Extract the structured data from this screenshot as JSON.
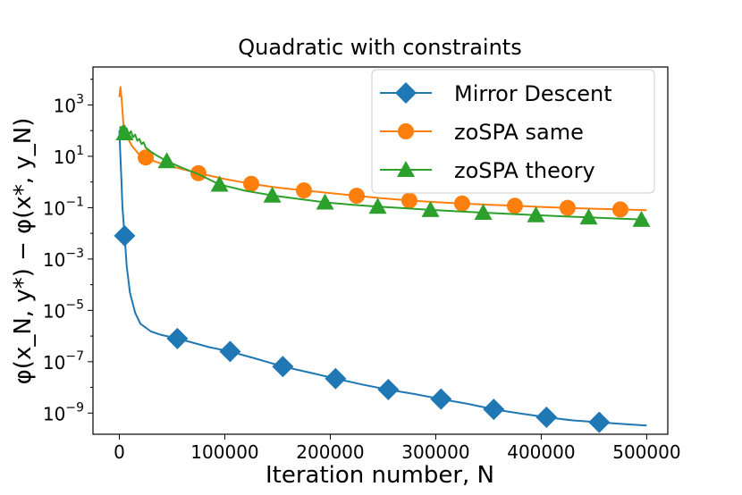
{
  "chart_data": {
    "type": "line",
    "title": "Quadratic with constraints",
    "xlabel": "Iteration number, N",
    "ylabel": "φ(x_N, y*) − φ(x*, y_N)",
    "xlim": [
      -25000,
      520000
    ],
    "ylim": [
      1.5e-10,
      30000
    ],
    "yscale": "log",
    "x_ticks": [
      0,
      100000,
      200000,
      300000,
      400000,
      500000
    ],
    "x_tick_labels": [
      "0",
      "100000",
      "200000",
      "300000",
      "400000",
      "500000"
    ],
    "y_ticks": [
      1e-09,
      1e-07,
      1e-05,
      0.001,
      0.1,
      10,
      1000
    ],
    "y_tick_labels": [
      {
        "base": "10",
        "exp": "−9"
      },
      {
        "base": "10",
        "exp": "−7"
      },
      {
        "base": "10",
        "exp": "−5"
      },
      {
        "base": "10",
        "exp": "−3"
      },
      {
        "base": "10",
        "exp": "−1"
      },
      {
        "base": "10",
        "exp": "1"
      },
      {
        "base": "10",
        "exp": "3"
      }
    ],
    "grid": false,
    "legend": "top-right",
    "series": [
      {
        "name": "Mirror Descent",
        "color": "#1f77b4",
        "marker": "diamond",
        "x": [
          0,
          1000,
          2000,
          3000,
          5000,
          7000,
          10000,
          15000,
          20000,
          30000,
          40000,
          55000,
          70000,
          85000,
          105000,
          130000,
          155000,
          180000,
          205000,
          230000,
          255000,
          280000,
          305000,
          330000,
          355000,
          380000,
          405000,
          430000,
          455000,
          480000,
          500000
        ],
        "y": [
          100,
          10,
          1,
          0.1,
          0.008,
          0.0005,
          5e-05,
          8e-06,
          3e-06,
          1.5e-06,
          1.1e-06,
          8e-07,
          5.5e-07,
          3.7e-07,
          2.5e-07,
          1.3e-07,
          6.5e-08,
          3.8e-08,
          2.2e-08,
          1.3e-08,
          8.2e-09,
          5.5e-09,
          3.5e-09,
          2.3e-09,
          1.4e-09,
          9.7e-10,
          6.9e-10,
          5.2e-10,
          4.4e-10,
          3.7e-10,
          3.3e-10
        ],
        "marker_x": [
          5000,
          55000,
          105000,
          155000,
          205000,
          255000,
          305000,
          355000,
          405000,
          455000
        ],
        "marker_y": [
          0.008,
          8e-07,
          2.5e-07,
          6.5e-08,
          2.2e-08,
          8.2e-09,
          3.5e-09,
          1.4e-09,
          6.9e-10,
          4.4e-10
        ]
      },
      {
        "name": "zoSPA same",
        "color": "#ff7f0e",
        "marker": "circle",
        "x": [
          0,
          1000,
          2000,
          4000,
          7000,
          12000,
          18000,
          25000,
          35000,
          50000,
          75000,
          100000,
          125000,
          150000,
          175000,
          200000,
          225000,
          250000,
          275000,
          300000,
          325000,
          350000,
          375000,
          400000,
          425000,
          450000,
          475000,
          500000
        ],
        "y": [
          2000,
          5000,
          2000,
          150,
          60,
          25,
          13,
          9,
          6,
          4,
          2.2,
          1.3,
          0.85,
          0.6,
          0.47,
          0.37,
          0.29,
          0.23,
          0.19,
          0.165,
          0.145,
          0.13,
          0.118,
          0.107,
          0.098,
          0.091,
          0.085,
          0.08
        ],
        "marker_x": [
          25000,
          75000,
          125000,
          175000,
          225000,
          275000,
          325000,
          375000,
          425000,
          475000
        ],
        "marker_y": [
          9,
          2.2,
          0.85,
          0.47,
          0.29,
          0.19,
          0.145,
          0.118,
          0.098,
          0.085
        ]
      },
      {
        "name": "zoSPA theory",
        "color": "#2ca02c",
        "marker": "triangle",
        "x": [
          0,
          1000,
          2000,
          3000,
          5000,
          7000,
          9000,
          11000,
          13000,
          15000,
          17000,
          19000,
          21000,
          23000,
          25000,
          30000,
          35000,
          45000,
          60000,
          75000,
          95000,
          120000,
          145000,
          170000,
          195000,
          220000,
          245000,
          270000,
          295000,
          320000,
          345000,
          370000,
          395000,
          420000,
          445000,
          470000,
          500000
        ],
        "y": [
          50,
          140,
          90,
          150,
          80,
          120,
          70,
          95,
          55,
          70,
          40,
          48,
          30,
          35,
          22,
          15,
          11,
          6.5,
          3.5,
          2,
          0.8,
          0.45,
          0.3,
          0.22,
          0.16,
          0.13,
          0.11,
          0.095,
          0.082,
          0.072,
          0.064,
          0.057,
          0.051,
          0.046,
          0.042,
          0.038,
          0.034
        ],
        "marker_x": [
          5000,
          45000,
          95000,
          145000,
          195000,
          245000,
          295000,
          345000,
          395000,
          445000,
          495000
        ],
        "marker_y": [
          80,
          6.5,
          0.8,
          0.3,
          0.16,
          0.11,
          0.082,
          0.064,
          0.051,
          0.042,
          0.034
        ]
      }
    ]
  }
}
